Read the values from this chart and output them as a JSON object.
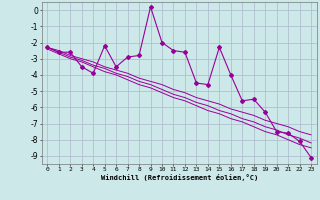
{
  "x_data": [
    0,
    1,
    2,
    3,
    4,
    5,
    6,
    7,
    8,
    9,
    10,
    11,
    12,
    13,
    14,
    15,
    16,
    17,
    18,
    19,
    20,
    21,
    22,
    23
  ],
  "y_main": [
    -2.3,
    -2.6,
    -2.6,
    -3.5,
    -3.9,
    -2.2,
    -3.5,
    -2.9,
    -2.8,
    0.2,
    -2.0,
    -2.5,
    -2.6,
    -4.5,
    -4.6,
    -2.3,
    -4.0,
    -5.6,
    -5.5,
    -6.3,
    -7.5,
    -7.6,
    -8.1,
    -9.1
  ],
  "y_reg1": [
    -2.3,
    -2.5,
    -2.8,
    -3.0,
    -3.2,
    -3.5,
    -3.7,
    -3.9,
    -4.2,
    -4.4,
    -4.6,
    -4.9,
    -5.1,
    -5.4,
    -5.6,
    -5.8,
    -6.1,
    -6.3,
    -6.5,
    -6.8,
    -7.0,
    -7.2,
    -7.5,
    -7.7
  ],
  "y_reg2": [
    -2.3,
    -2.6,
    -2.9,
    -3.1,
    -3.4,
    -3.6,
    -3.9,
    -4.1,
    -4.4,
    -4.6,
    -4.9,
    -5.2,
    -5.4,
    -5.7,
    -5.9,
    -6.2,
    -6.4,
    -6.7,
    -6.9,
    -7.2,
    -7.4,
    -7.7,
    -7.9,
    -8.2
  ],
  "y_reg3": [
    -2.4,
    -2.7,
    -3.0,
    -3.2,
    -3.5,
    -3.8,
    -4.0,
    -4.3,
    -4.6,
    -4.8,
    -5.1,
    -5.4,
    -5.6,
    -5.9,
    -6.2,
    -6.4,
    -6.7,
    -6.9,
    -7.2,
    -7.5,
    -7.7,
    -8.0,
    -8.3,
    -8.5
  ],
  "line_color": "#990099",
  "bg_color": "#cce8e8",
  "grid_color": "#aab8cc",
  "xlabel": "Windchill (Refroidissement éolien,°C)",
  "ylim": [
    -9.5,
    0.5
  ],
  "xlim": [
    -0.5,
    23.5
  ],
  "yticks": [
    0,
    -1,
    -2,
    -3,
    -4,
    -5,
    -6,
    -7,
    -8,
    -9
  ],
  "xticks": [
    0,
    1,
    2,
    3,
    4,
    5,
    6,
    7,
    8,
    9,
    10,
    11,
    12,
    13,
    14,
    15,
    16,
    17,
    18,
    19,
    20,
    21,
    22,
    23
  ],
  "xlabel_fontsize": 5.0,
  "ytick_fontsize": 5.5,
  "xtick_fontsize": 4.5
}
